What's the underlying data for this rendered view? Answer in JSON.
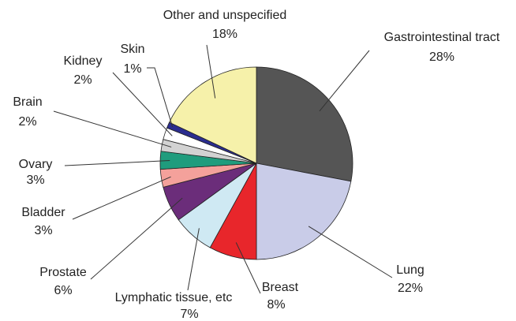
{
  "chart_data": {
    "type": "pie",
    "categories": [
      "Gastrointestinal tract",
      "Lung",
      "Breast",
      "Lymphatic tissue, etc",
      "Prostate",
      "Bladder",
      "Ovary",
      "Brain",
      "Kidney",
      "Skin",
      "Other and unspecified"
    ],
    "values": [
      28,
      22,
      8,
      7,
      6,
      3,
      3,
      2,
      2,
      1,
      18
    ],
    "value_labels": [
      "28%",
      "22%",
      "8%",
      "7%",
      "6%",
      "3%",
      "3%",
      "2%",
      "2%",
      "1%",
      "18%"
    ],
    "colors": [
      "#555555",
      "#c9cce8",
      "#e8262b",
      "#cfe9f3",
      "#6b2d7a",
      "#f4a19b",
      "#1f9c7d",
      "#d2d2d2",
      "#ffffff",
      "#2b2d8f",
      "#f6f1aa"
    ]
  }
}
